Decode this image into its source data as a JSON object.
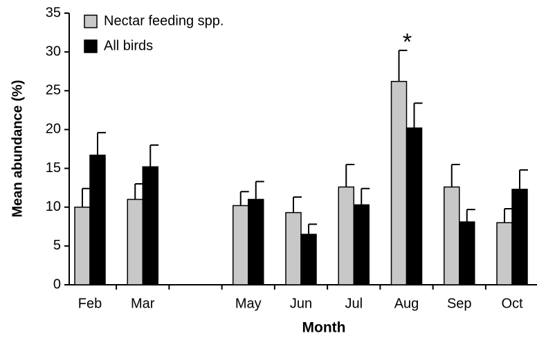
{
  "chart_data": {
    "type": "bar",
    "xlabel": "Month",
    "ylabel": "Mean abundance (%)",
    "categories": [
      "Feb",
      "Mar",
      null,
      "May",
      "Jun",
      "Jul",
      "Aug",
      "Sep",
      "Oct"
    ],
    "series": [
      {
        "name": "Nectar feeding spp.",
        "color": "#c8c8c8",
        "values": [
          10,
          11,
          null,
          10.2,
          9.3,
          12.6,
          26.2,
          12.6,
          8.0
        ],
        "errors": [
          2.4,
          2.0,
          null,
          1.8,
          2.0,
          2.9,
          4.0,
          2.9,
          1.8
        ]
      },
      {
        "name": "All birds",
        "color": "#000000",
        "values": [
          16.7,
          15.2,
          null,
          11,
          6.5,
          10.3,
          20.2,
          8.1,
          12.3
        ],
        "errors": [
          2.9,
          2.8,
          null,
          2.3,
          1.3,
          2.1,
          3.2,
          1.6,
          2.5
        ]
      }
    ],
    "annotations": [
      {
        "text": "*",
        "category": "Aug"
      }
    ],
    "ylim": [
      0,
      35
    ],
    "yticks": [
      0,
      5,
      10,
      15,
      20,
      25,
      30,
      35
    ],
    "legend": "upper left",
    "grid": false
  }
}
